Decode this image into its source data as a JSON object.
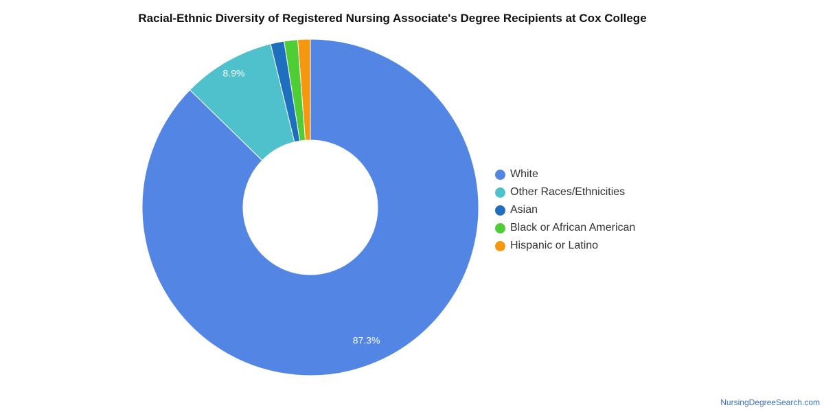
{
  "chart_data": {
    "type": "pie",
    "title": "Racial-Ethnic Diversity of Registered Nursing Associate's Degree Recipients at Cox College",
    "donut": true,
    "legend_position": "right",
    "series": [
      {
        "name": "White",
        "value": 87.3,
        "color": "#5386E4",
        "label": "87.3%"
      },
      {
        "name": "Other Races/Ethnicities",
        "value": 8.9,
        "color": "#4FC1CD",
        "label": "8.9%"
      },
      {
        "name": "Asian",
        "value": 1.3,
        "color": "#1F6FBF",
        "label": ""
      },
      {
        "name": "Black or African American",
        "value": 1.3,
        "color": "#4FCD35",
        "label": ""
      },
      {
        "name": "Hispanic or Latino",
        "value": 1.2,
        "color": "#F5980F",
        "label": ""
      }
    ]
  },
  "footer": {
    "source": "NursingDegreeSearch.com"
  }
}
